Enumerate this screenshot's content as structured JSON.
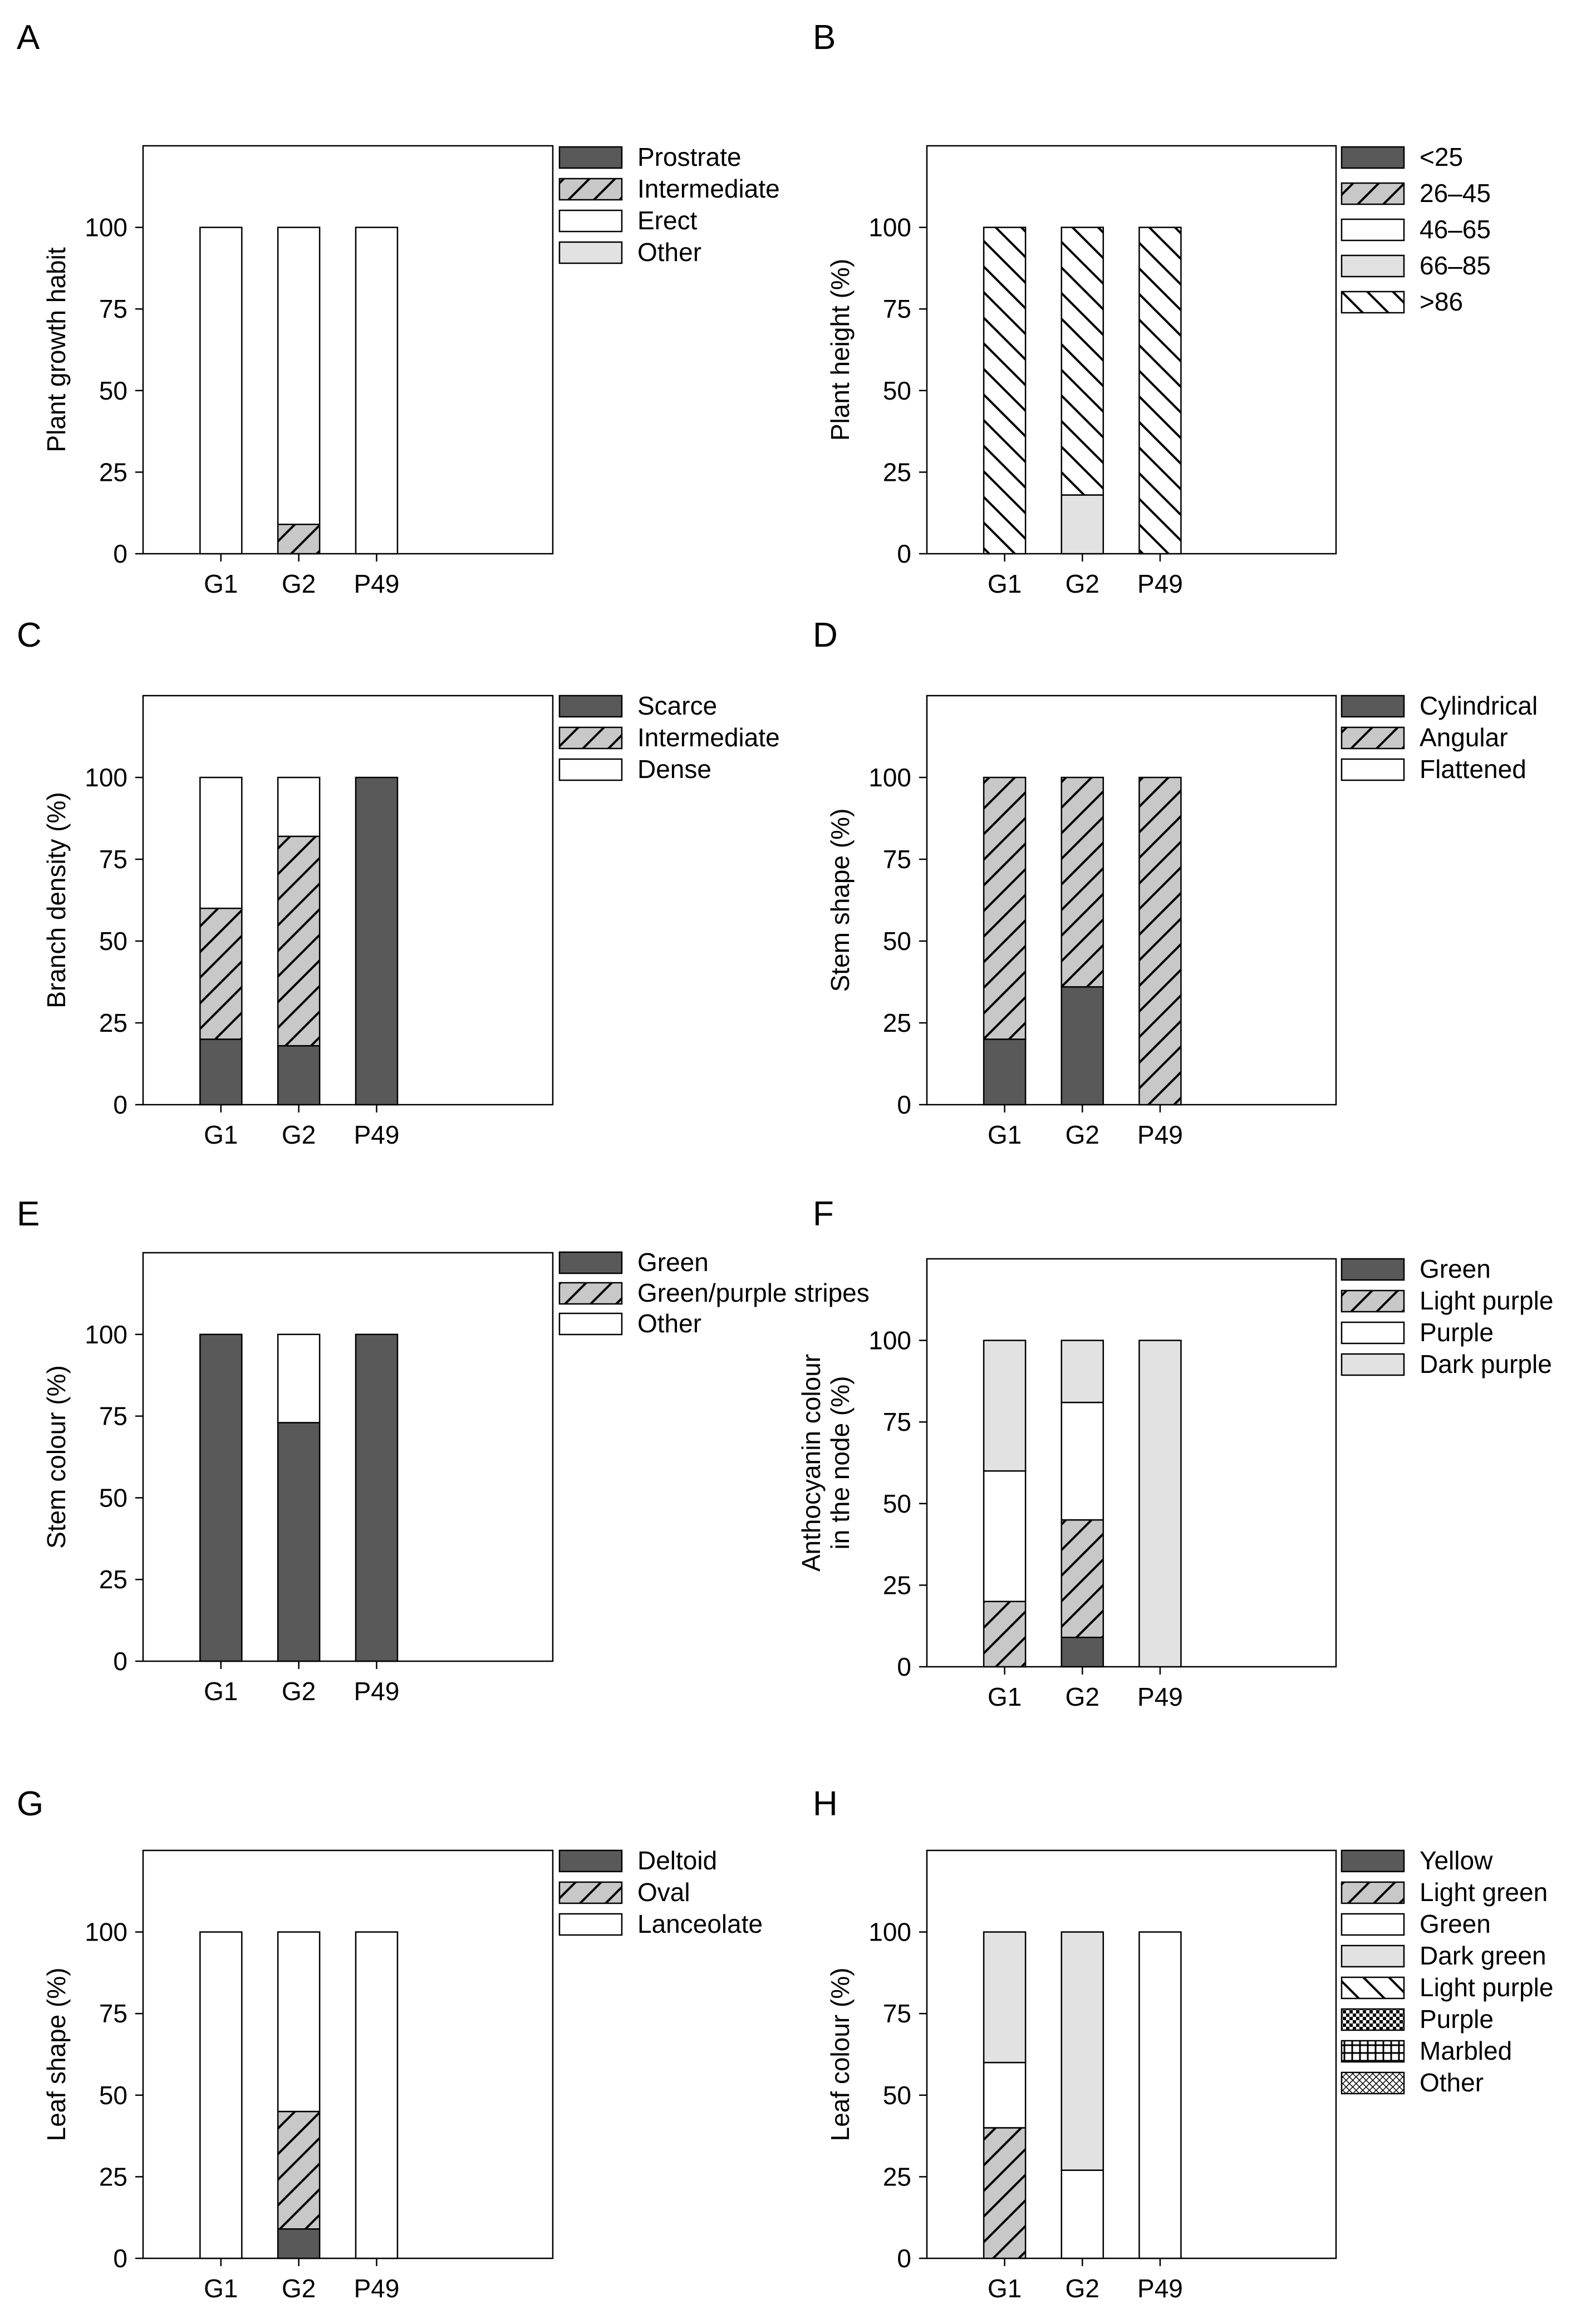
{
  "figure": {
    "description": "Eight stacked bar charts of morphological descriptor frequencies for genotypes G1, G2 and P49"
  },
  "chart_data": [
    {
      "type": "bar",
      "stacked": true,
      "panel": "A",
      "ylabel": [
        "Plant growth habit"
      ],
      "categories": [
        "G1",
        "G2",
        "P49"
      ],
      "ylim": [
        0,
        125
      ],
      "yticks": [
        0,
        25,
        50,
        75,
        100
      ],
      "series": [
        {
          "name": "Prostrate",
          "style": "dark",
          "values": [
            0,
            0,
            0
          ]
        },
        {
          "name": "Intermediate",
          "style": "hatch",
          "values": [
            0,
            9,
            0
          ]
        },
        {
          "name": "Erect",
          "style": "white",
          "values": [
            100,
            91,
            100
          ]
        },
        {
          "name": "Other",
          "style": "light",
          "values": [
            0,
            0,
            0
          ]
        }
      ]
    },
    {
      "type": "bar",
      "stacked": true,
      "panel": "B",
      "ylabel": [
        "Plant height (%)"
      ],
      "categories": [
        "G1",
        "G2",
        "P49"
      ],
      "ylim": [
        0,
        125
      ],
      "yticks": [
        0,
        25,
        50,
        75,
        100
      ],
      "series": [
        {
          "name": "<25",
          "style": "dark",
          "values": [
            0,
            0,
            0
          ]
        },
        {
          "name": "26–45",
          "style": "hatch",
          "values": [
            0,
            0,
            0
          ]
        },
        {
          "name": "46–65",
          "style": "white",
          "values": [
            0,
            0,
            0
          ]
        },
        {
          "name": "66–85",
          "style": "light",
          "values": [
            0,
            18,
            0
          ]
        },
        {
          "name": ">86",
          "style": "back",
          "values": [
            100,
            82,
            100
          ]
        }
      ]
    },
    {
      "type": "bar",
      "stacked": true,
      "panel": "C",
      "ylabel": [
        "Branch density (%)"
      ],
      "categories": [
        "G1",
        "G2",
        "P49"
      ],
      "ylim": [
        0,
        125
      ],
      "yticks": [
        0,
        25,
        50,
        75,
        100
      ],
      "series": [
        {
          "name": "Scarce",
          "style": "dark",
          "values": [
            20,
            18,
            100
          ]
        },
        {
          "name": "Intermediate",
          "style": "hatch",
          "values": [
            40,
            64,
            0
          ]
        },
        {
          "name": "Dense",
          "style": "white",
          "values": [
            40,
            18,
            0
          ]
        }
      ]
    },
    {
      "type": "bar",
      "stacked": true,
      "panel": "D",
      "ylabel": [
        "Stem shape (%)"
      ],
      "categories": [
        "G1",
        "G2",
        "P49"
      ],
      "ylim": [
        0,
        125
      ],
      "yticks": [
        0,
        25,
        50,
        75,
        100
      ],
      "series": [
        {
          "name": "Cylindrical",
          "style": "dark",
          "values": [
            20,
            36,
            0
          ]
        },
        {
          "name": "Angular",
          "style": "hatch",
          "values": [
            80,
            64,
            100
          ]
        },
        {
          "name": "Flattened",
          "style": "white",
          "values": [
            0,
            0,
            0
          ]
        }
      ]
    },
    {
      "type": "bar",
      "stacked": true,
      "panel": "E",
      "ylabel": [
        "Stem colour (%)"
      ],
      "categories": [
        "G1",
        "G2",
        "P49"
      ],
      "ylim": [
        0,
        125
      ],
      "yticks": [
        0,
        25,
        50,
        75,
        100
      ],
      "series": [
        {
          "name": "Green",
          "style": "dark",
          "values": [
            100,
            73,
            100
          ]
        },
        {
          "name": "Green/purple stripes",
          "style": "hatch",
          "values": [
            0,
            0,
            0
          ]
        },
        {
          "name": "Other",
          "style": "white",
          "values": [
            0,
            27,
            0
          ]
        }
      ]
    },
    {
      "type": "bar",
      "stacked": true,
      "panel": "F",
      "ylabel": [
        "Anthocyanin colour",
        "in the node (%)"
      ],
      "categories": [
        "G1",
        "G2",
        "P49"
      ],
      "ylim": [
        0,
        125
      ],
      "yticks": [
        0,
        25,
        50,
        75,
        100
      ],
      "series": [
        {
          "name": "Green",
          "style": "dark",
          "values": [
            0,
            9,
            0
          ]
        },
        {
          "name": "Light purple",
          "style": "hatch",
          "values": [
            20,
            36,
            0
          ]
        },
        {
          "name": "Purple",
          "style": "white",
          "values": [
            40,
            36,
            0
          ]
        },
        {
          "name": "Dark purple",
          "style": "light",
          "values": [
            40,
            19,
            100
          ]
        }
      ]
    },
    {
      "type": "bar",
      "stacked": true,
      "panel": "G",
      "ylabel": [
        "Leaf shape (%)"
      ],
      "categories": [
        "G1",
        "G2",
        "P49"
      ],
      "ylim": [
        0,
        125
      ],
      "yticks": [
        0,
        25,
        50,
        75,
        100
      ],
      "series": [
        {
          "name": "Deltoid",
          "style": "dark",
          "values": [
            0,
            9,
            0
          ]
        },
        {
          "name": "Oval",
          "style": "hatch",
          "values": [
            0,
            36,
            0
          ]
        },
        {
          "name": "Lanceolate",
          "style": "white",
          "values": [
            100,
            55,
            100
          ]
        }
      ]
    },
    {
      "type": "bar",
      "stacked": true,
      "panel": "H",
      "ylabel": [
        "Leaf colour (%)"
      ],
      "categories": [
        "G1",
        "G2",
        "P49"
      ],
      "ylim": [
        0,
        125
      ],
      "yticks": [
        0,
        25,
        50,
        75,
        100
      ],
      "series": [
        {
          "name": "Yellow",
          "style": "dark",
          "values": [
            0,
            0,
            0
          ]
        },
        {
          "name": "Light green",
          "style": "hatch",
          "values": [
            40,
            0,
            0
          ]
        },
        {
          "name": "Green",
          "style": "white",
          "values": [
            20,
            27,
            100
          ]
        },
        {
          "name": "Dark green",
          "style": "light",
          "values": [
            40,
            73,
            0
          ]
        },
        {
          "name": "Light purple",
          "style": "back",
          "values": [
            0,
            0,
            0
          ]
        },
        {
          "name": "Purple",
          "style": "dots",
          "values": [
            0,
            0,
            0
          ]
        },
        {
          "name": "Marbled",
          "style": "grid",
          "values": [
            0,
            0,
            0
          ]
        },
        {
          "name": "Other",
          "style": "xhatch",
          "values": [
            0,
            0,
            0
          ]
        }
      ]
    }
  ]
}
